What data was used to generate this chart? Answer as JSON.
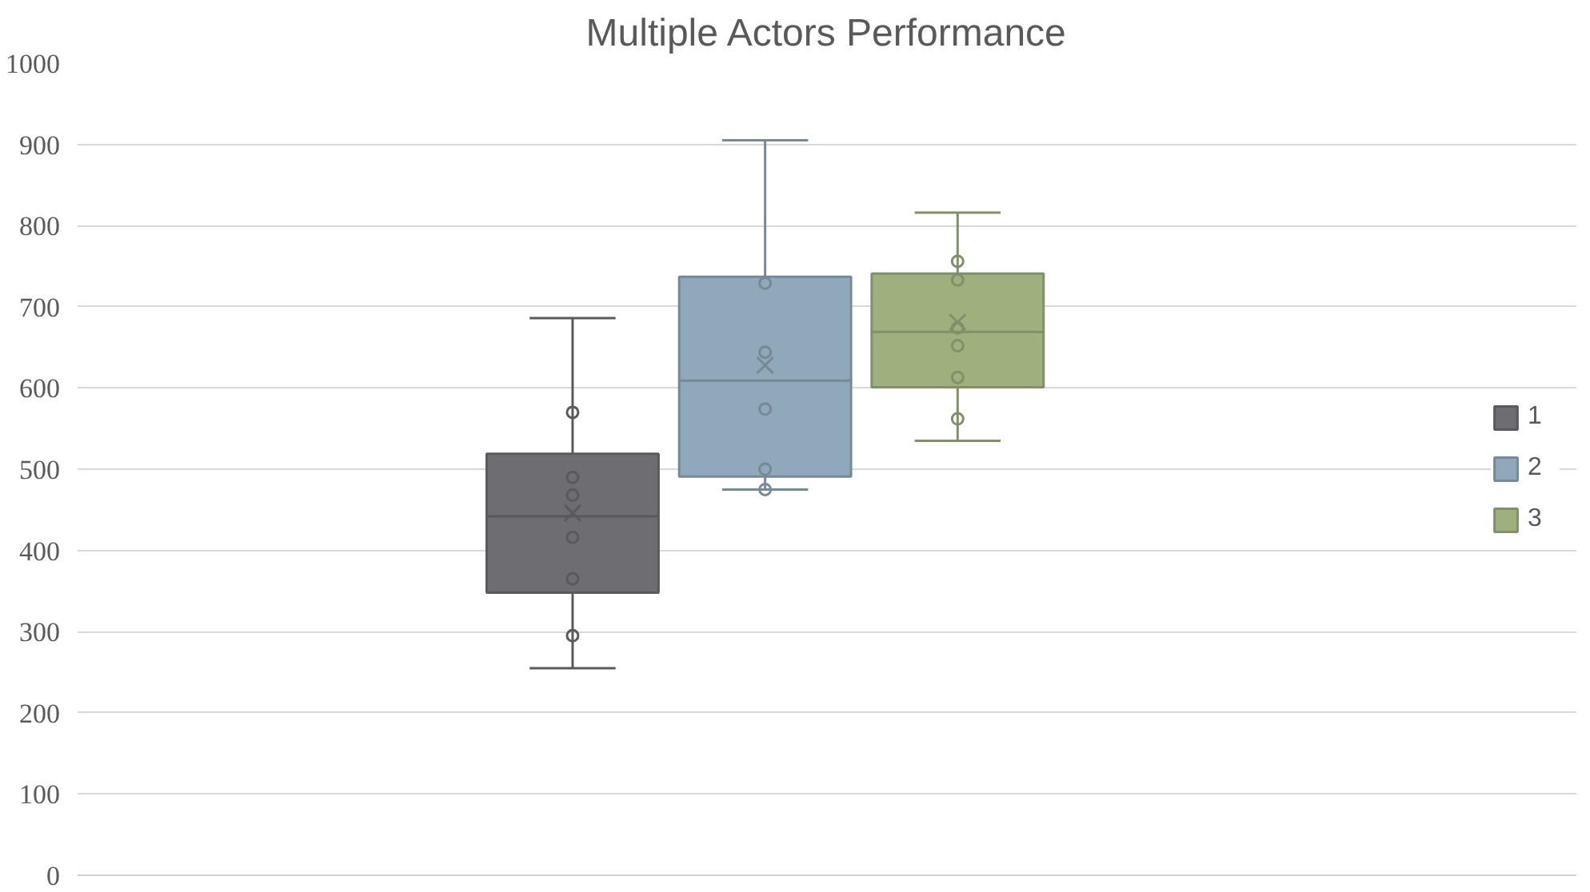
{
  "chart_data": {
    "type": "box",
    "title": "Multiple Actors Performance",
    "categories": [
      null
    ],
    "series": [
      {
        "name": "1",
        "color": "#6e6d72",
        "boxes": [
          {
            "low": 255,
            "q1": 348,
            "median": 442,
            "q3": 519,
            "high": 686,
            "mean": 446,
            "outliers": [
              570,
              490,
              468,
              416,
              365,
              295
            ]
          }
        ]
      },
      {
        "name": "2",
        "color": "#8fa8ba",
        "boxes": [
          {
            "low": 475,
            "q1": 491,
            "median": 609,
            "q3": 737,
            "high": 905,
            "mean": 628,
            "outliers": [
              729,
              644,
              574,
              500,
              475
            ]
          }
        ]
      },
      {
        "name": "3",
        "color": "#9eb07e",
        "boxes": [
          {
            "low": 535,
            "q1": 601,
            "median": 669,
            "q3": 741,
            "high": 816,
            "mean": 681,
            "outliers": [
              756,
              733,
              674,
              652,
              613,
              562
            ]
          }
        ]
      }
    ],
    "ylim": [
      0,
      1000
    ],
    "yticks": [
      0,
      100,
      200,
      300,
      400,
      500,
      600,
      700,
      800,
      900,
      1000
    ],
    "grid": "y",
    "legend": "right"
  }
}
